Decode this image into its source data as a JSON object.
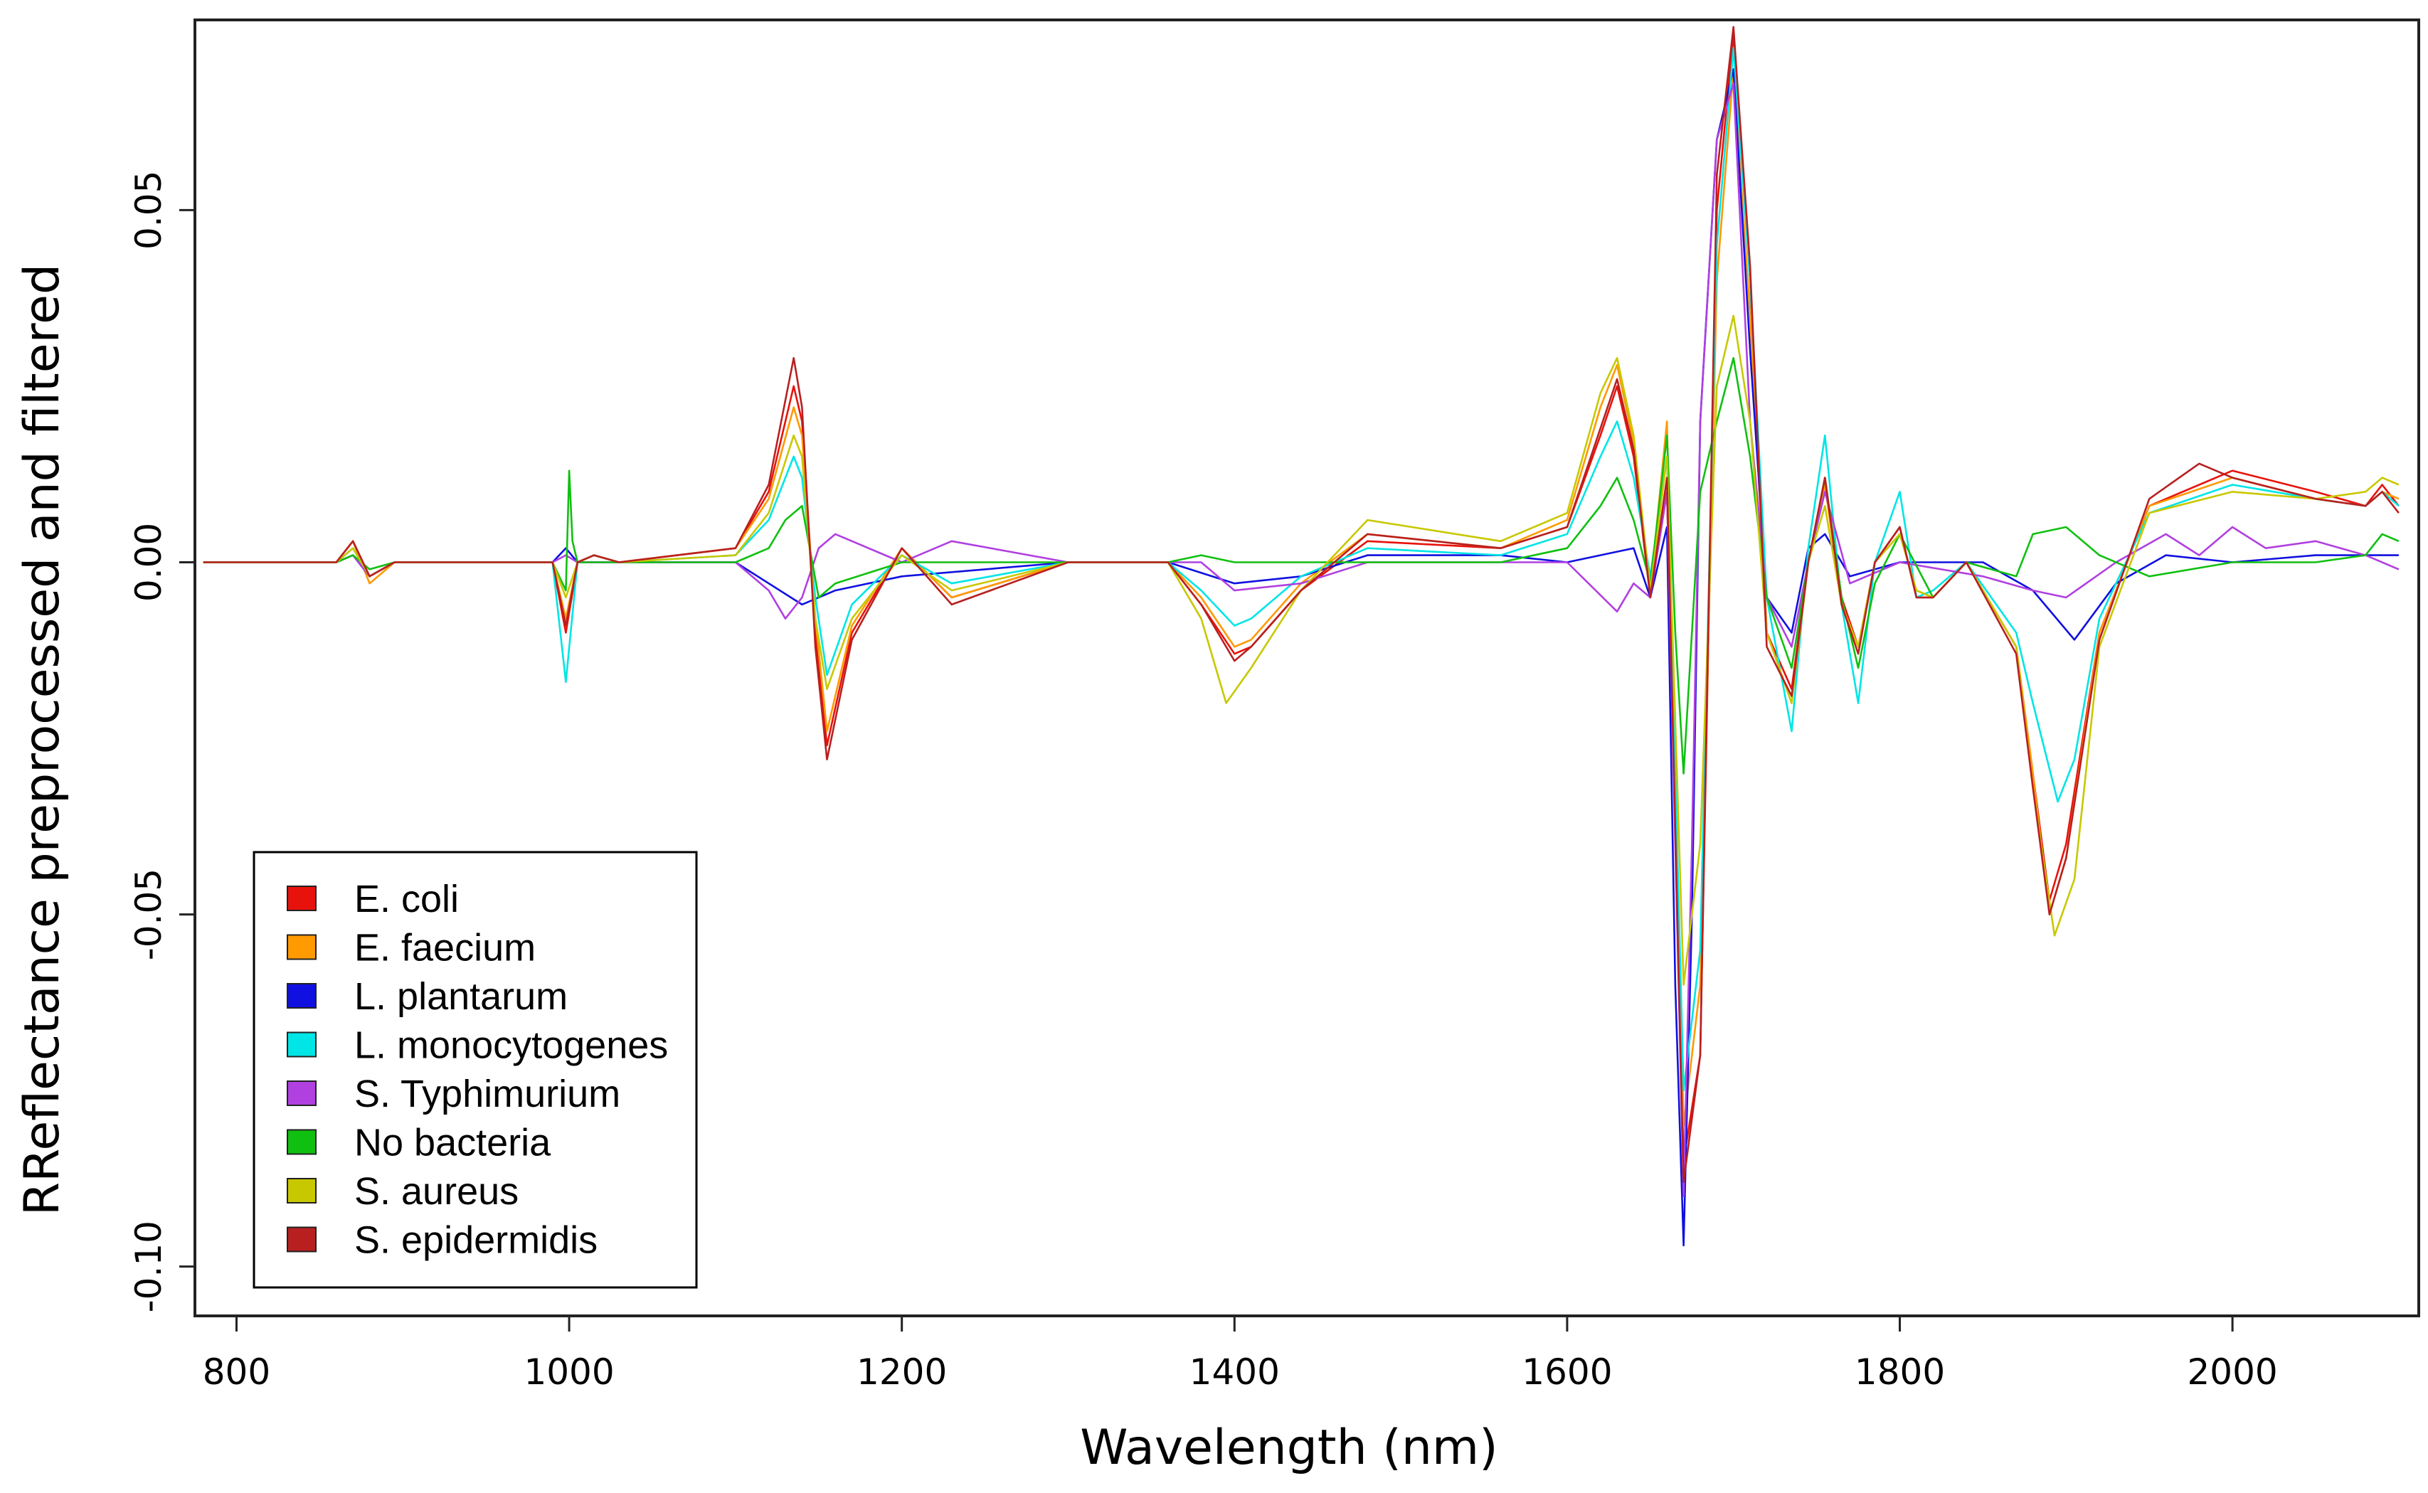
{
  "chart_data": {
    "type": "line",
    "title": "",
    "xlabel": "Wavelength (nm)",
    "ylabel": "RReflectance preprocessed and filtered",
    "xlim": [
      775,
      2112
    ],
    "ylim": [
      -0.107,
      0.077
    ],
    "xticks": [
      800,
      1000,
      1200,
      1400,
      1600,
      1800,
      2000
    ],
    "xtick_labels": [
      "800",
      "1000",
      "1200",
      "1400",
      "1600",
      "1800",
      "2000"
    ],
    "yticks": [
      -0.1,
      -0.05,
      0.0,
      0.05
    ],
    "ytick_labels": [
      "-0.10",
      "-0.05",
      "0.00",
      "0.05"
    ],
    "grid": false,
    "legend_position": "bottom-left",
    "series": [
      {
        "name": "E. coli",
        "color": "#e8120c",
        "x": [
          780,
          860,
          870,
          880,
          895,
          990,
          998,
          1005,
          1015,
          1030,
          1100,
          1120,
          1135,
          1140,
          1148,
          1155,
          1170,
          1200,
          1230,
          1300,
          1360,
          1380,
          1400,
          1410,
          1440,
          1480,
          1560,
          1600,
          1620,
          1630,
          1640,
          1650,
          1660,
          1670,
          1680,
          1690,
          1700,
          1710,
          1720,
          1735,
          1745,
          1755,
          1765,
          1775,
          1785,
          1800,
          1810,
          1820,
          1840,
          1870,
          1880,
          1890,
          1900,
          1920,
          1950,
          2000,
          2050,
          2080,
          2090,
          2100
        ],
        "y": [
          0.0,
          0.0,
          0.003,
          -0.002,
          0.0,
          0.0,
          -0.01,
          0.0,
          0.001,
          0.0,
          0.002,
          0.01,
          0.025,
          0.02,
          -0.01,
          -0.026,
          -0.01,
          0.002,
          -0.005,
          0.0,
          0.0,
          -0.006,
          -0.013,
          -0.012,
          -0.004,
          0.003,
          0.002,
          0.005,
          0.018,
          0.025,
          0.015,
          -0.005,
          0.01,
          -0.085,
          -0.07,
          0.05,
          0.075,
          0.04,
          -0.01,
          -0.018,
          0.0,
          0.012,
          -0.005,
          -0.012,
          0.0,
          0.005,
          -0.005,
          -0.005,
          0.0,
          -0.012,
          -0.03,
          -0.048,
          -0.04,
          -0.01,
          0.008,
          0.013,
          0.01,
          0.008,
          0.011,
          0.008
        ]
      },
      {
        "name": "E. faecium",
        "color": "#ff9a00",
        "x": [
          780,
          860,
          870,
          880,
          895,
          990,
          998,
          1005,
          1015,
          1030,
          1100,
          1120,
          1135,
          1140,
          1148,
          1155,
          1170,
          1200,
          1230,
          1300,
          1360,
          1380,
          1400,
          1410,
          1440,
          1480,
          1560,
          1600,
          1620,
          1630,
          1640,
          1650,
          1660,
          1670,
          1680,
          1690,
          1700,
          1710,
          1720,
          1735,
          1745,
          1755,
          1765,
          1775,
          1785,
          1800,
          1810,
          1820,
          1840,
          1870,
          1880,
          1890,
          1900,
          1920,
          1950,
          2000,
          2050,
          2080,
          2090,
          2100
        ],
        "y": [
          0.0,
          0.0,
          0.003,
          -0.003,
          0.0,
          0.0,
          -0.008,
          0.0,
          0.001,
          0.0,
          0.002,
          0.009,
          0.022,
          0.018,
          -0.008,
          -0.024,
          -0.009,
          0.002,
          -0.005,
          0.0,
          0.0,
          -0.005,
          -0.012,
          -0.011,
          -0.003,
          0.004,
          0.002,
          0.006,
          0.022,
          0.028,
          0.017,
          -0.004,
          0.02,
          -0.08,
          -0.06,
          0.04,
          0.07,
          0.035,
          -0.01,
          -0.02,
          0.0,
          0.011,
          -0.006,
          -0.012,
          0.0,
          0.004,
          -0.004,
          -0.005,
          0.0,
          -0.012,
          -0.03,
          -0.05,
          -0.042,
          -0.01,
          0.008,
          0.012,
          0.009,
          0.008,
          0.01,
          0.009
        ]
      },
      {
        "name": "L. plantarum",
        "color": "#1010e0",
        "x": [
          780,
          860,
          870,
          880,
          895,
          990,
          998,
          1005,
          1015,
          1030,
          1100,
          1120,
          1140,
          1150,
          1160,
          1200,
          1300,
          1360,
          1400,
          1440,
          1480,
          1560,
          1600,
          1640,
          1650,
          1660,
          1665,
          1670,
          1675,
          1680,
          1690,
          1700,
          1710,
          1720,
          1735,
          1745,
          1755,
          1770,
          1800,
          1850,
          1880,
          1905,
          1930,
          1960,
          2000,
          2050,
          2100
        ],
        "y": [
          0.0,
          0.0,
          0.001,
          -0.002,
          0.0,
          0.0,
          0.002,
          0.0,
          0.0,
          0.0,
          0.0,
          -0.003,
          -0.006,
          -0.005,
          -0.004,
          -0.002,
          0.0,
          0.0,
          -0.003,
          -0.002,
          0.001,
          0.001,
          0.0,
          0.002,
          -0.005,
          0.005,
          -0.06,
          -0.097,
          -0.05,
          0.02,
          0.06,
          0.07,
          0.03,
          -0.005,
          -0.01,
          0.002,
          0.004,
          -0.002,
          0.0,
          0.0,
          -0.004,
          -0.011,
          -0.003,
          0.001,
          0.0,
          0.001,
          0.001
        ]
      },
      {
        "name": "L. monocytogenes",
        "color": "#00e5e5",
        "x": [
          780,
          860,
          870,
          880,
          895,
          990,
          998,
          1005,
          1015,
          1030,
          1100,
          1120,
          1135,
          1140,
          1148,
          1155,
          1170,
          1200,
          1230,
          1300,
          1360,
          1380,
          1400,
          1410,
          1440,
          1480,
          1560,
          1600,
          1620,
          1630,
          1640,
          1650,
          1660,
          1670,
          1680,
          1690,
          1700,
          1710,
          1720,
          1735,
          1745,
          1755,
          1765,
          1775,
          1785,
          1800,
          1810,
          1820,
          1840,
          1870,
          1880,
          1895,
          1905,
          1920,
          1950,
          2000,
          2050,
          2080,
          2090,
          2100
        ],
        "y": [
          0.0,
          0.0,
          0.002,
          -0.002,
          0.0,
          0.0,
          -0.017,
          0.0,
          0.001,
          0.0,
          0.001,
          0.006,
          0.015,
          0.012,
          -0.005,
          -0.016,
          -0.006,
          0.001,
          -0.003,
          0.0,
          0.0,
          -0.004,
          -0.009,
          -0.008,
          -0.002,
          0.002,
          0.001,
          0.004,
          0.015,
          0.02,
          0.012,
          -0.002,
          0.015,
          -0.075,
          -0.055,
          0.045,
          0.073,
          0.04,
          -0.005,
          -0.024,
          0.002,
          0.018,
          -0.006,
          -0.02,
          0.0,
          0.01,
          -0.005,
          -0.004,
          0.0,
          -0.01,
          -0.02,
          -0.034,
          -0.028,
          -0.008,
          0.007,
          0.011,
          0.009,
          0.008,
          0.01,
          0.008
        ]
      },
      {
        "name": "S. Typhimurium",
        "color": "#b040e0",
        "x": [
          780,
          860,
          870,
          880,
          895,
          990,
          998,
          1005,
          1015,
          1030,
          1100,
          1120,
          1130,
          1140,
          1150,
          1160,
          1200,
          1230,
          1300,
          1360,
          1380,
          1400,
          1440,
          1480,
          1560,
          1600,
          1630,
          1640,
          1650,
          1660,
          1665,
          1670,
          1675,
          1680,
          1690,
          1700,
          1710,
          1720,
          1735,
          1745,
          1755,
          1770,
          1800,
          1850,
          1880,
          1900,
          1930,
          1960,
          1980,
          2000,
          2020,
          2050,
          2080,
          2100
        ],
        "y": [
          0.0,
          0.0,
          0.001,
          -0.002,
          0.0,
          0.0,
          0.001,
          0.0,
          0.0,
          0.0,
          0.0,
          -0.004,
          -0.008,
          -0.005,
          0.002,
          0.004,
          0.0,
          0.003,
          0.0,
          0.0,
          0.0,
          -0.004,
          -0.003,
          0.0,
          0.0,
          0.0,
          -0.007,
          -0.003,
          -0.005,
          0.01,
          -0.04,
          -0.09,
          -0.04,
          0.02,
          0.06,
          0.068,
          0.02,
          -0.005,
          -0.012,
          0.0,
          0.01,
          -0.003,
          0.0,
          -0.002,
          -0.004,
          -0.005,
          0.0,
          0.004,
          0.001,
          0.005,
          0.002,
          0.003,
          0.001,
          -0.001
        ]
      },
      {
        "name": "No bacteria",
        "color": "#10c010",
        "x": [
          780,
          860,
          870,
          880,
          895,
          990,
          998,
          1000,
          1002,
          1005,
          1015,
          1030,
          1100,
          1120,
          1130,
          1140,
          1150,
          1160,
          1200,
          1300,
          1360,
          1380,
          1400,
          1440,
          1480,
          1560,
          1600,
          1620,
          1630,
          1640,
          1650,
          1660,
          1665,
          1670,
          1675,
          1680,
          1690,
          1700,
          1710,
          1720,
          1735,
          1745,
          1755,
          1765,
          1775,
          1785,
          1800,
          1820,
          1840,
          1870,
          1880,
          1900,
          1920,
          1950,
          2000,
          2050,
          2080,
          2090,
          2100
        ],
        "y": [
          0.0,
          0.0,
          0.001,
          -0.001,
          0.0,
          0.0,
          -0.004,
          0.013,
          0.003,
          0.0,
          0.0,
          0.0,
          0.0,
          0.002,
          0.006,
          0.008,
          -0.005,
          -0.003,
          0.0,
          0.0,
          0.0,
          0.001,
          0.0,
          0.0,
          0.0,
          0.0,
          0.002,
          0.008,
          0.012,
          0.006,
          -0.003,
          0.018,
          -0.01,
          -0.03,
          -0.01,
          0.01,
          0.02,
          0.029,
          0.015,
          -0.005,
          -0.015,
          0.0,
          0.012,
          -0.005,
          -0.015,
          -0.003,
          0.004,
          -0.005,
          0.0,
          -0.002,
          0.004,
          0.005,
          0.001,
          -0.002,
          0.0,
          0.0,
          0.001,
          0.004,
          0.003
        ]
      },
      {
        "name": "S. aureus",
        "color": "#c8c800",
        "x": [
          780,
          860,
          870,
          880,
          895,
          990,
          998,
          1005,
          1015,
          1030,
          1100,
          1120,
          1135,
          1140,
          1148,
          1155,
          1170,
          1200,
          1230,
          1300,
          1360,
          1380,
          1395,
          1410,
          1440,
          1480,
          1560,
          1600,
          1620,
          1630,
          1640,
          1650,
          1660,
          1670,
          1680,
          1690,
          1700,
          1710,
          1720,
          1735,
          1745,
          1755,
          1765,
          1775,
          1785,
          1800,
          1810,
          1820,
          1840,
          1870,
          1880,
          1893,
          1905,
          1920,
          1950,
          2000,
          2050,
          2080,
          2090,
          2100
        ],
        "y": [
          0.0,
          0.0,
          0.002,
          -0.002,
          0.0,
          0.0,
          -0.005,
          0.0,
          0.001,
          0.0,
          0.001,
          0.007,
          0.018,
          0.015,
          -0.008,
          -0.018,
          -0.008,
          0.001,
          -0.004,
          0.0,
          0.0,
          -0.008,
          -0.02,
          -0.015,
          -0.004,
          0.006,
          0.003,
          0.007,
          0.024,
          0.029,
          0.018,
          -0.004,
          0.015,
          -0.06,
          -0.04,
          0.025,
          0.035,
          0.02,
          -0.01,
          -0.02,
          0.0,
          0.008,
          -0.006,
          -0.012,
          0.0,
          0.004,
          -0.004,
          -0.005,
          0.0,
          -0.012,
          -0.032,
          -0.053,
          -0.045,
          -0.012,
          0.007,
          0.01,
          0.009,
          0.01,
          0.012,
          0.011
        ]
      },
      {
        "name": "S. epidermidis",
        "color": "#b82020",
        "x": [
          780,
          860,
          870,
          880,
          895,
          990,
          998,
          1005,
          1015,
          1030,
          1100,
          1120,
          1135,
          1140,
          1148,
          1155,
          1170,
          1200,
          1230,
          1300,
          1360,
          1380,
          1400,
          1410,
          1440,
          1480,
          1560,
          1600,
          1620,
          1630,
          1640,
          1650,
          1660,
          1670,
          1680,
          1690,
          1700,
          1710,
          1720,
          1735,
          1745,
          1755,
          1765,
          1775,
          1785,
          1800,
          1810,
          1820,
          1840,
          1870,
          1880,
          1890,
          1900,
          1920,
          1950,
          1980,
          2000,
          2050,
          2080,
          2090,
          2100
        ],
        "y": [
          0.0,
          0.0,
          0.003,
          -0.002,
          0.0,
          0.0,
          -0.009,
          0.0,
          0.001,
          0.0,
          0.002,
          0.011,
          0.029,
          0.022,
          -0.012,
          -0.028,
          -0.011,
          0.002,
          -0.006,
          0.0,
          0.0,
          -0.006,
          -0.014,
          -0.012,
          -0.004,
          0.004,
          0.002,
          0.005,
          0.019,
          0.026,
          0.016,
          -0.005,
          0.012,
          -0.088,
          -0.07,
          0.055,
          0.076,
          0.042,
          -0.012,
          -0.019,
          0.0,
          0.012,
          -0.006,
          -0.013,
          0.0,
          0.005,
          -0.005,
          -0.005,
          0.0,
          -0.013,
          -0.032,
          -0.05,
          -0.042,
          -0.011,
          0.009,
          0.014,
          0.012,
          0.009,
          0.008,
          0.01,
          0.007
        ]
      }
    ]
  }
}
